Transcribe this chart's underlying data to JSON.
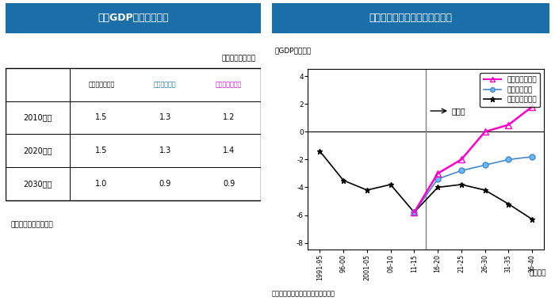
{
  "left_title": "実質GDP成長率の比較",
  "right_title": "国・地方政府の基礎的財政収支",
  "header_bg": "#1a6fa8",
  "header_text_color": "#ffffff",
  "table_unit": "（期間平均、％）",
  "table_rows": [
    "2010年代",
    "2020年代",
    "2030年代"
  ],
  "table_cols": [
    "ベースシナリオ",
    "改革シナリオ",
    "超改革シナリオ"
  ],
  "table_data": [
    [
      1.5,
      1.3,
      1.2
    ],
    [
      1.5,
      1.3,
      1.4
    ],
    [
      1.0,
      0.9,
      0.9
    ]
  ],
  "left_source": "（出所）大和総研作成",
  "right_source": "（出所）各種統計より大和総研作成",
  "ylabel": "（GDP比、％）",
  "xlabel": "（年度）",
  "x_labels": [
    "1991-95",
    "96-00",
    "2001-05",
    "06-10",
    "11-15",
    "16-20",
    "21-25",
    "26-30",
    "31-35",
    "36-40"
  ],
  "x_values": [
    0,
    1,
    2,
    3,
    4,
    5,
    6,
    7,
    8,
    9
  ],
  "ylim": [
    -8.5,
    4.5
  ],
  "yticks": [
    -8,
    -6,
    -4,
    -2,
    0,
    2,
    4
  ],
  "arrow_label": "（予）",
  "base_label": "ベースシナリオ",
  "reform_label": "改革シナリオ",
  "super_label": "超改革シナリオ",
  "base_data": [
    -1.4,
    -3.5,
    -4.2,
    -3.8,
    -5.8,
    -4.0,
    -3.8,
    -4.2,
    -5.2,
    -6.3
  ],
  "reform_data": [
    null,
    null,
    null,
    null,
    -5.8,
    -3.4,
    -2.8,
    -2.4,
    -2.0,
    -1.8
  ],
  "super_data": [
    null,
    null,
    null,
    null,
    -5.8,
    -3.0,
    -2.0,
    0.0,
    0.5,
    1.8
  ],
  "col_colors": [
    "#000000",
    "#1a6fa8",
    "#cc00cc"
  ],
  "base_color": "#000000",
  "reform_color": "#4488cc",
  "super_color": "#ff00cc",
  "header_fontsize": 9,
  "table_fontsize": 7,
  "col_header_fontsize": 5.8,
  "source_fontsize": 6.5
}
